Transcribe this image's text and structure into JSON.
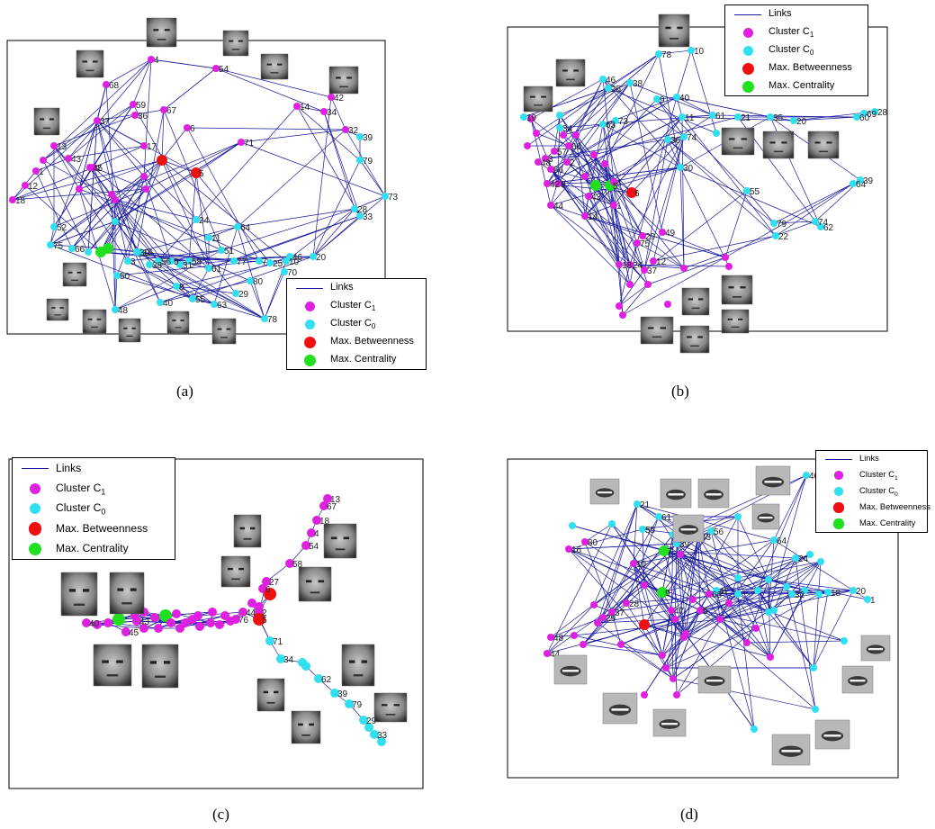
{
  "panels": [
    {
      "caption": "(a)",
      "legend": [
        "Links",
        "Cluster C1",
        "Cluster C0",
        "Max. Betweenness",
        "Max. Centrality"
      ],
      "node_labels": [
        "4",
        "54",
        "68",
        "42",
        "14",
        "34",
        "32",
        "39",
        "79",
        "73",
        "28",
        "33",
        "67",
        "36",
        "6",
        "71",
        "37",
        "59",
        "17",
        "5",
        "13",
        "1",
        "12",
        "18",
        "52",
        "75",
        "66",
        "50",
        "48",
        "40",
        "24",
        "64",
        "11",
        "51",
        "61",
        "8",
        "55",
        "63",
        "29",
        "78",
        "7",
        "10",
        "20",
        "70",
        "80",
        "30",
        "38",
        "9",
        "3",
        "2",
        "16",
        "56",
        "31",
        "25",
        "46",
        "77",
        "58",
        "43",
        "45"
      ]
    },
    {
      "caption": "(b)",
      "legend": [
        "Links",
        "Cluster C1",
        "Cluster C0",
        "Max. Betweenness",
        "Max. Centrality"
      ],
      "node_labels": [
        "78",
        "10",
        "46",
        "25",
        "38",
        "9",
        "40",
        "11",
        "61",
        "21",
        "35",
        "20",
        "60",
        "69",
        "28",
        "73",
        "63",
        "19",
        "74",
        "36",
        "30",
        "55",
        "64",
        "39",
        "79",
        "74",
        "22",
        "62",
        "34",
        "66",
        "57",
        "3",
        "48",
        "56",
        "2",
        "42",
        "8",
        "5",
        "4",
        "6",
        "1",
        "43",
        "14",
        "44",
        "29",
        "49",
        "12",
        "75",
        "24",
        "37",
        "18"
      ]
    },
    {
      "caption": "(c)",
      "legend": [
        "Links",
        "Cluster C1",
        "Cluster C0",
        "Max. Betweenness",
        "Max. Centrality"
      ],
      "node_labels": [
        "13",
        "67",
        "18",
        "4",
        "54",
        "58",
        "27",
        "6",
        "2",
        "5",
        "40",
        "45",
        "43",
        "76",
        "44",
        "71",
        "34",
        "62",
        "39",
        "79",
        "29",
        "33"
      ]
    },
    {
      "caption": "(d)",
      "legend": [
        "Links",
        "Cluster C1",
        "Cluster C0",
        "Max. Betweenness",
        "Max. Centrality"
      ],
      "node_labels": [
        "46",
        "21",
        "61",
        "55",
        "35",
        "39",
        "56",
        "24",
        "1",
        "43",
        "64",
        "18",
        "20",
        "32",
        "42",
        "80",
        "16",
        "10",
        "7",
        "9",
        "47",
        "28",
        "37",
        "48",
        "44",
        "29",
        "63",
        "5"
      ]
    }
  ],
  "colors": {
    "link": "#1a1a9e",
    "cluster1": "#e020e0",
    "cluster0": "#30e0f0",
    "betweenness": "#ee1010",
    "centrality": "#20e020"
  }
}
